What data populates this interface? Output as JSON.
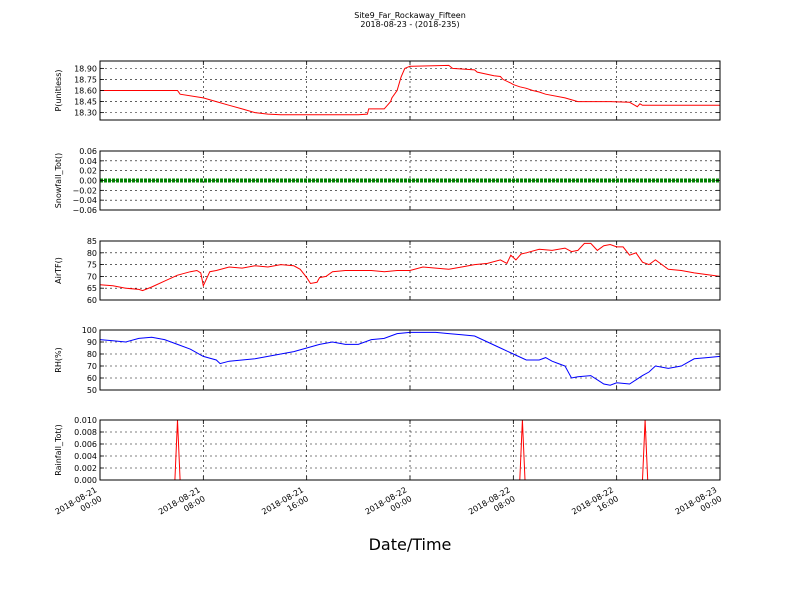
{
  "chart_data": {
    "type": "line",
    "title": "Site9_Far_Rockaway_Fifteen",
    "subtitle": "2018-08-23 - (2018-235)",
    "xlabel": "Date/Time",
    "x_ticks": [
      "2018-08-21 00:00",
      "2018-08-21 08:00",
      "2018-08-21 16:00",
      "2018-08-22 00:00",
      "2018-08-22 08:00",
      "2018-08-22 16:00",
      "2018-08-23 00:00"
    ],
    "xlim_hours": [
      0,
      48
    ],
    "grid": true,
    "panels": [
      {
        "ylabel": "P(unitless)",
        "ylim": [
          18.2,
          19.0
        ],
        "yticks": [
          "18.30",
          "18.45",
          "18.60",
          "18.75",
          "18.90"
        ],
        "color": "#ff0000",
        "x": [
          0,
          6,
          6.2,
          8,
          9,
          10,
          11,
          12,
          13,
          14,
          15,
          16,
          20,
          20.7,
          20.8,
          22,
          22.5,
          22.6,
          23,
          23.3,
          23.6,
          24,
          24.2,
          27,
          27.3,
          29,
          29.2,
          30.5,
          31,
          31.2,
          31.8,
          32,
          32.5,
          33,
          33.5,
          34,
          34.5,
          36,
          37,
          39,
          39.5,
          41,
          41.6,
          41.8,
          42,
          48
        ],
        "values": [
          18.6,
          18.6,
          18.55,
          18.5,
          18.45,
          18.4,
          18.35,
          18.3,
          18.28,
          18.27,
          18.27,
          18.27,
          18.27,
          18.28,
          18.35,
          18.35,
          18.45,
          18.5,
          18.6,
          18.78,
          18.9,
          18.93,
          18.93,
          18.94,
          18.9,
          18.88,
          18.85,
          18.8,
          18.79,
          18.75,
          18.7,
          18.68,
          18.65,
          18.63,
          18.6,
          18.58,
          18.55,
          18.5,
          18.45,
          18.45,
          18.45,
          18.44,
          18.38,
          18.42,
          18.4,
          18.4
        ]
      },
      {
        "ylabel": "Snowfall_Tot()",
        "ylim": [
          -0.06,
          0.06
        ],
        "yticks": [
          "0.06",
          "0.04",
          "0.02",
          "0.00",
          "−0.02",
          "−0.04",
          "−0.06"
        ],
        "color": "#008000",
        "x": [
          0,
          48
        ],
        "values": [
          0,
          0
        ]
      },
      {
        "ylabel": "AirTF()",
        "ylim": [
          60,
          85
        ],
        "yticks": [
          "60",
          "65",
          "70",
          "75",
          "80",
          "85"
        ],
        "color": "#ff0000",
        "x": [
          0,
          1,
          2,
          3,
          3.3,
          4,
          5,
          6,
          7,
          7.5,
          7.8,
          8,
          8.5,
          9,
          10,
          11,
          12,
          13,
          14,
          15,
          15.5,
          16,
          16.3,
          16.8,
          17,
          17.5,
          18,
          19,
          20,
          21,
          22,
          23,
          24,
          25,
          26,
          27,
          28,
          29,
          30,
          31,
          31.5,
          31.8,
          32.2,
          32.6,
          33,
          34,
          35,
          36,
          36.5,
          37,
          37.5,
          38,
          38.5,
          39,
          39.5,
          40,
          40.5,
          41,
          41.5,
          42,
          42.5,
          43,
          44,
          45,
          46,
          48
        ],
        "values": [
          66.5,
          66,
          65,
          64.5,
          64,
          65.5,
          68,
          70.5,
          72,
          72.5,
          71.5,
          66,
          72,
          72.5,
          74,
          73.5,
          74.5,
          74,
          75,
          74.5,
          73,
          69.5,
          67,
          67.5,
          69.5,
          70,
          72,
          72.5,
          72.5,
          72.5,
          72,
          72.5,
          72.5,
          74,
          73.5,
          73,
          74,
          75,
          75.5,
          77,
          75.5,
          79,
          77,
          79.5,
          80,
          81.5,
          81,
          82,
          80.5,
          81,
          84,
          84,
          81,
          83,
          83.5,
          82.5,
          82.5,
          79,
          80,
          76,
          75,
          77,
          73,
          72.5,
          71.5,
          70
        ]
      },
      {
        "ylabel": "RH(%)",
        "ylim": [
          50,
          100
        ],
        "yticks": [
          "50",
          "60",
          "70",
          "80",
          "90",
          "100"
        ],
        "color": "#0000ff",
        "x": [
          0,
          1,
          2,
          3,
          4,
          5,
          6,
          7,
          8,
          9,
          9.3,
          10,
          11,
          12,
          13,
          14,
          15,
          16,
          17,
          18,
          19,
          20,
          21,
          22,
          23,
          24,
          25,
          26,
          27,
          28,
          29,
          30,
          31,
          32,
          33,
          34,
          34.5,
          35,
          35.5,
          36,
          36.5,
          37,
          38,
          39,
          39.5,
          40,
          41,
          42,
          42.5,
          43,
          44,
          45,
          46,
          47,
          48
        ],
        "values": [
          92,
          91,
          90,
          93,
          94,
          92,
          88,
          84,
          78,
          75,
          72,
          74,
          75,
          76,
          78,
          80,
          82,
          85,
          88,
          90,
          88,
          88,
          92,
          93,
          97,
          98,
          98,
          98,
          97,
          96,
          95,
          90,
          85,
          80,
          75,
          75,
          77,
          74,
          72,
          70,
          60,
          61,
          62,
          55,
          54,
          56,
          55,
          62,
          65,
          70,
          68,
          70,
          76,
          77,
          78
        ]
      },
      {
        "ylabel": "Rainfall_Tot()",
        "ylim": [
          0,
          0.01
        ],
        "yticks": [
          "0.000",
          "0.002",
          "0.004",
          "0.006",
          "0.008",
          "0.010"
        ],
        "color": "#ff0000",
        "x": [
          0,
          5.8,
          6,
          6.2,
          32.5,
          32.7,
          32.9,
          42.0,
          42.2,
          42.4,
          48
        ],
        "values": [
          0,
          0,
          0.01,
          0,
          0,
          0.01,
          0,
          0,
          0.01,
          0,
          0
        ]
      }
    ]
  }
}
